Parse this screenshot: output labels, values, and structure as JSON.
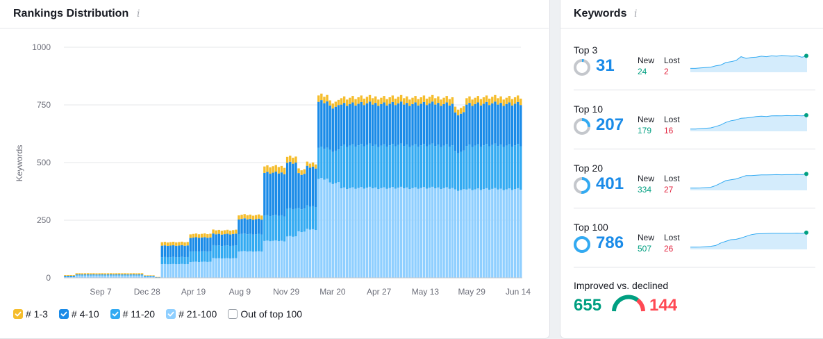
{
  "rankings": {
    "title": "Rankings Distribution",
    "info_icon": "info-icon",
    "legend": [
      {
        "label": "# 1-3",
        "color": "#f5bd2c",
        "checked": true
      },
      {
        "label": "# 4-10",
        "color": "#1a8be8",
        "checked": true
      },
      {
        "label": "# 11-20",
        "color": "#32aaf2",
        "checked": true
      },
      {
        "label": "# 21-100",
        "color": "#8fcfff",
        "checked": true
      },
      {
        "label": "Out of top 100",
        "color": "#ffffff",
        "checked": false
      }
    ]
  },
  "chart_data": {
    "type": "bar",
    "stacked": true,
    "title": "Rankings Distribution",
    "ylabel": "Keywords",
    "xlabel": "",
    "ylim": [
      0,
      1000
    ],
    "yticks": [
      0,
      250,
      500,
      750,
      1000
    ],
    "x_tick_labels": [
      "Sep 7",
      "Dec 28",
      "Apr 19",
      "Aug 9",
      "Nov 29",
      "Mar 20",
      "Apr 27",
      "May 13",
      "May 29",
      "Jun 14"
    ],
    "series_order": [
      "21-100",
      "11-20",
      "4-10",
      "1-3"
    ],
    "segments": [
      {
        "bars": 4,
        "v": [
          3,
          3,
          3,
          3
        ]
      },
      {
        "bars": 24,
        "v": [
          10,
          3,
          2,
          5
        ]
      },
      {
        "bars": 4,
        "v": [
          4,
          3,
          2,
          2
        ]
      },
      {
        "bars": 2,
        "v": [
          1,
          1,
          1,
          1
        ]
      },
      {
        "bars": 10,
        "v": [
          60,
          30,
          50,
          15
        ]
      },
      {
        "bars": 8,
        "v": [
          70,
          45,
          60,
          16
        ]
      },
      {
        "bars": 9,
        "v": [
          85,
          55,
          50,
          17
        ]
      },
      {
        "bars": 9,
        "v": [
          115,
          75,
          65,
          18
        ]
      },
      {
        "bars": 8,
        "v": [
          160,
          110,
          185,
          28
        ]
      },
      {
        "bars": 4,
        "v": [
          180,
          120,
          200,
          26
        ]
      },
      {
        "bars": 3,
        "v": [
          200,
          100,
          150,
          20
        ]
      },
      {
        "bars": 4,
        "v": [
          210,
          100,
          170,
          18
        ]
      },
      {
        "bars": 4,
        "v": [
          430,
          135,
          200,
          28
        ]
      },
      {
        "bars": 4,
        "v": [
          410,
          140,
          190,
          22
        ]
      },
      {
        "bars": 40,
        "v": [
          390,
          185,
          180,
          28
        ]
      },
      {
        "bars": 4,
        "v": [
          380,
          165,
          165,
          25
        ]
      },
      {
        "bars": 20,
        "v": [
          385,
          190,
          180,
          28
        ]
      }
    ]
  },
  "keywords": {
    "title": "Keywords",
    "info_icon": "info-icon",
    "new_label": "New",
    "lost_label": "Lost",
    "rows": [
      {
        "label": "Top 3",
        "value": "31",
        "new": "24",
        "lost": "2",
        "ratio": 0.04
      },
      {
        "label": "Top 10",
        "value": "207",
        "new": "179",
        "lost": "16",
        "ratio": 0.26
      },
      {
        "label": "Top 20",
        "value": "401",
        "new": "334",
        "lost": "27",
        "ratio": 0.51
      },
      {
        "label": "Top 100",
        "value": "786",
        "new": "507",
        "lost": "26",
        "ratio": 1.0
      }
    ],
    "improved_label": "Improved vs. declined",
    "improved": "655",
    "declined": "144",
    "colors": {
      "blue": "#1a8be8",
      "green": "#009f81",
      "red": "#ff4953"
    }
  }
}
